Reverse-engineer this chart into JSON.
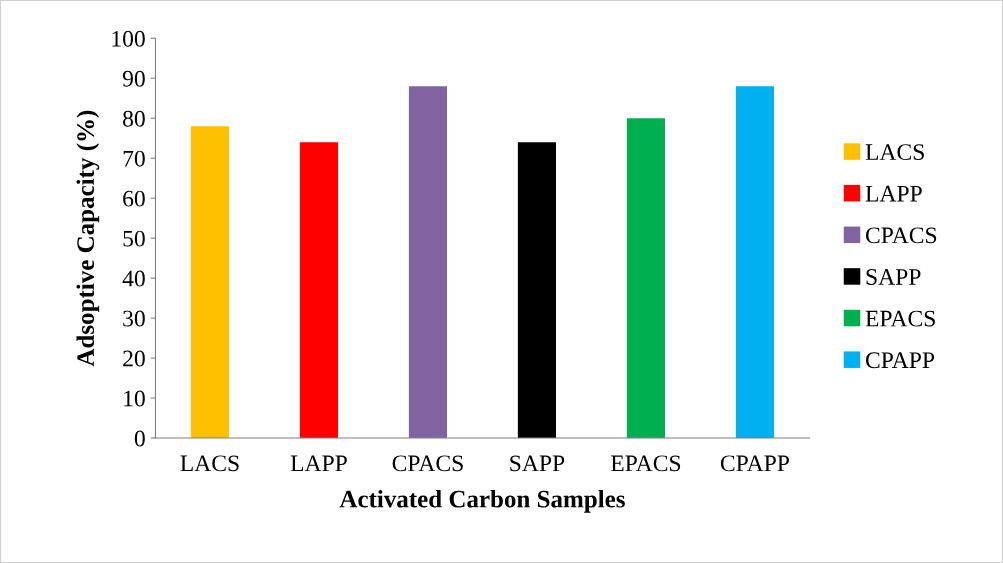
{
  "chart_data": {
    "type": "bar",
    "xlabel": "Activated Carbon Samples",
    "ylabel": "Adsoptive Capacity (%)",
    "categories": [
      "LACS",
      "LAPP",
      "CPACS",
      "SAPP",
      "EPACS",
      "CPAPP"
    ],
    "series": [
      {
        "name": "LACS",
        "color": "#ffc000",
        "values": [
          78,
          null,
          null,
          null,
          null,
          null
        ]
      },
      {
        "name": "LAPP",
        "color": "#ff0000",
        "values": [
          null,
          74,
          null,
          null,
          null,
          null
        ]
      },
      {
        "name": "CPACS",
        "color": "#8064a2",
        "values": [
          null,
          null,
          88,
          null,
          null,
          null
        ]
      },
      {
        "name": "SAPP",
        "color": "#000000",
        "values": [
          null,
          null,
          null,
          74,
          null,
          null
        ]
      },
      {
        "name": "EPACS",
        "color": "#00b050",
        "values": [
          null,
          null,
          null,
          null,
          80,
          null
        ]
      },
      {
        "name": "CPAPP",
        "color": "#00b0f0",
        "values": [
          null,
          null,
          null,
          null,
          null,
          88
        ]
      }
    ],
    "ylim": [
      0,
      100
    ],
    "yticks": [
      0,
      10,
      20,
      30,
      40,
      50,
      60,
      70,
      80,
      90,
      100
    ],
    "grid": false,
    "legend": "right"
  }
}
